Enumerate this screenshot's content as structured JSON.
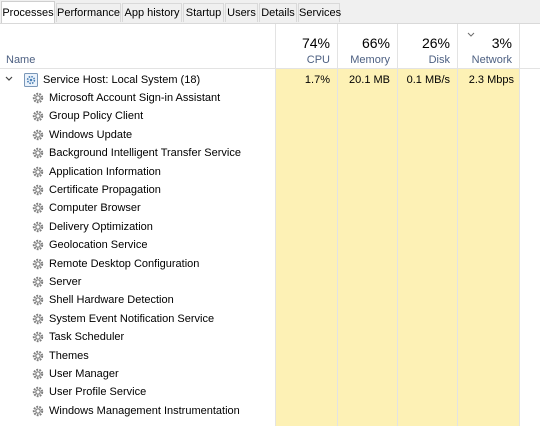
{
  "tabs": [
    "Processes",
    "Performance",
    "App history",
    "Startup",
    "Users",
    "Details",
    "Services"
  ],
  "header": {
    "name_label": "Name",
    "cpu": {
      "percent": "74%",
      "label": "CPU"
    },
    "memory": {
      "percent": "66%",
      "label": "Memory"
    },
    "disk": {
      "percent": "26%",
      "label": "Disk"
    },
    "network": {
      "percent": "3%",
      "label": "Network"
    }
  },
  "group": {
    "name": "Service Host: Local System (18)",
    "cpu": "1.7%",
    "memory": "20.1 MB",
    "disk": "0.1 MB/s",
    "network": "2.3 Mbps"
  },
  "services": [
    "Microsoft Account Sign-in Assistant",
    "Group Policy Client",
    "Windows Update",
    "Background Intelligent Transfer Service",
    "Application Information",
    "Certificate Propagation",
    "Computer Browser",
    "Delivery Optimization",
    "Geolocation Service",
    "Remote Desktop Configuration",
    "Server",
    "Shell Hardware Detection",
    "System Event Notification Service",
    "Task Scheduler",
    "Themes",
    "User Manager",
    "User Profile Service",
    "Windows Management Instrumentation"
  ],
  "colors": {
    "highlight": "#fdf1b5",
    "header_label": "#4d6082"
  }
}
